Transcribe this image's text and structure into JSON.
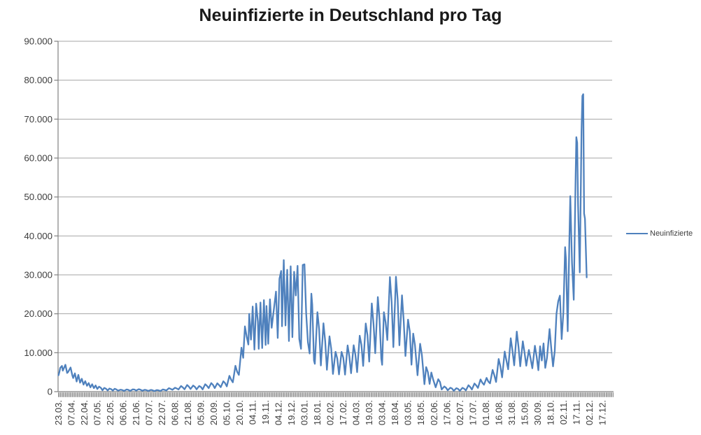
{
  "title": "Neuinfizierte in Deutschland pro Tag",
  "legend": {
    "label": "Neuinfizierte"
  },
  "colors": {
    "series": "#4F81BD",
    "gridline": "#A6A6A6",
    "axis": "#808080",
    "tick_strip": "#8a8a8a",
    "tick_text": "#3d3d3d",
    "title_text": "#191919"
  },
  "chart_data": {
    "type": "line",
    "title": "Neuinfizierte in Deutschland pro Tag",
    "ylabel": "",
    "xlabel": "",
    "ylim": [
      0,
      90000
    ],
    "grid": "horizontal",
    "legend_position": "right",
    "y_ticks": [
      {
        "v": 0,
        "label": "0"
      },
      {
        "v": 10000,
        "label": "10.000"
      },
      {
        "v": 20000,
        "label": "20.000"
      },
      {
        "v": 30000,
        "label": "30.000"
      },
      {
        "v": 40000,
        "label": "40.000"
      },
      {
        "v": 50000,
        "label": "50.000"
      },
      {
        "v": 60000,
        "label": "60.000"
      },
      {
        "v": 70000,
        "label": "70.000"
      },
      {
        "v": 80000,
        "label": "80.000"
      },
      {
        "v": 90000,
        "label": "90.000"
      }
    ],
    "x_tick_labels": [
      "23.03.",
      "07.04.",
      "22.04.",
      "07.05.",
      "22.05.",
      "06.06.",
      "21.06.",
      "07.07.",
      "22.07.",
      "06.08.",
      "21.08.",
      "05.09.",
      "20.09.",
      "05.10.",
      "20.10.",
      "04.11.",
      "19.11.",
      "04.12.",
      "19.12.",
      "03.01.",
      "18.01.",
      "02.02.",
      "17.02.",
      "04.03.",
      "19.03.",
      "03.04.",
      "18.04.",
      "03.05.",
      "18.05.",
      "02.06.",
      "17.06.",
      "02.07.",
      "17.07.",
      "01.08.",
      "16.08.",
      "31.08.",
      "15.09.",
      "30.09.",
      "18.10.",
      "02.11.",
      "17.11.",
      "02.12.",
      "17.12."
    ],
    "x_ticks_every": 15,
    "x_categories_total": 642,
    "series": [
      {
        "name": "Neuinfizierte",
        "points": [
          [
            0,
            4200
          ],
          [
            1,
            5000
          ],
          [
            2,
            6100
          ],
          [
            4,
            6600
          ],
          [
            5,
            5400
          ],
          [
            8,
            6900
          ],
          [
            10,
            4800
          ],
          [
            11,
            5000
          ],
          [
            14,
            6200
          ],
          [
            16,
            4200
          ],
          [
            17,
            3500
          ],
          [
            19,
            4700
          ],
          [
            21,
            2600
          ],
          [
            23,
            4300
          ],
          [
            25,
            2300
          ],
          [
            27,
            3300
          ],
          [
            29,
            1800
          ],
          [
            31,
            2700
          ],
          [
            33,
            1500
          ],
          [
            35,
            2200
          ],
          [
            37,
            1100
          ],
          [
            39,
            1900
          ],
          [
            41,
            900
          ],
          [
            43,
            1600
          ],
          [
            45,
            680
          ],
          [
            47,
            1280
          ],
          [
            49,
            1000
          ],
          [
            51,
            350
          ],
          [
            53,
            950
          ],
          [
            55,
            750
          ],
          [
            57,
            300
          ],
          [
            59,
            800
          ],
          [
            61,
            640
          ],
          [
            63,
            270
          ],
          [
            65,
            740
          ],
          [
            67,
            580
          ],
          [
            69,
            250
          ],
          [
            72,
            500
          ],
          [
            74,
            400
          ],
          [
            76,
            200
          ],
          [
            79,
            560
          ],
          [
            81,
            450
          ],
          [
            83,
            180
          ],
          [
            86,
            580
          ],
          [
            88,
            540
          ],
          [
            90,
            280
          ],
          [
            93,
            630
          ],
          [
            95,
            500
          ],
          [
            97,
            240
          ],
          [
            100,
            470
          ],
          [
            102,
            380
          ],
          [
            104,
            190
          ],
          [
            107,
            440
          ],
          [
            109,
            350
          ],
          [
            111,
            150
          ],
          [
            114,
            410
          ],
          [
            116,
            330
          ],
          [
            118,
            160
          ],
          [
            121,
            570
          ],
          [
            123,
            450
          ],
          [
            125,
            310
          ],
          [
            128,
            900
          ],
          [
            130,
            700
          ],
          [
            132,
            480
          ],
          [
            135,
            1000
          ],
          [
            137,
            820
          ],
          [
            139,
            560
          ],
          [
            142,
            1450
          ],
          [
            144,
            1100
          ],
          [
            146,
            600
          ],
          [
            149,
            1700
          ],
          [
            151,
            1300
          ],
          [
            153,
            680
          ],
          [
            156,
            1570
          ],
          [
            158,
            1250
          ],
          [
            160,
            590
          ],
          [
            163,
            1450
          ],
          [
            165,
            1200
          ],
          [
            167,
            580
          ],
          [
            170,
            1900
          ],
          [
            172,
            1500
          ],
          [
            174,
            900
          ],
          [
            177,
            2200
          ],
          [
            179,
            1750
          ],
          [
            181,
            910
          ],
          [
            184,
            2140
          ],
          [
            186,
            1700
          ],
          [
            188,
            1150
          ],
          [
            191,
            2670
          ],
          [
            193,
            2200
          ],
          [
            195,
            1350
          ],
          [
            198,
            4060
          ],
          [
            200,
            3100
          ],
          [
            202,
            2400
          ],
          [
            205,
            6640
          ],
          [
            207,
            5100
          ],
          [
            209,
            4300
          ],
          [
            212,
            11290
          ],
          [
            214,
            8690
          ],
          [
            216,
            16770
          ],
          [
            218,
            14200
          ],
          [
            220,
            12100
          ],
          [
            221,
            19990
          ],
          [
            223,
            13360
          ],
          [
            225,
            21870
          ],
          [
            227,
            10800
          ],
          [
            229,
            22600
          ],
          [
            231,
            18000
          ],
          [
            232,
            11000
          ],
          [
            234,
            22900
          ],
          [
            236,
            11200
          ],
          [
            238,
            23500
          ],
          [
            240,
            12000
          ],
          [
            241,
            22000
          ],
          [
            243,
            12300
          ],
          [
            245,
            23700
          ],
          [
            247,
            16400
          ],
          [
            250,
            22000
          ],
          [
            252,
            25700
          ],
          [
            254,
            13800
          ],
          [
            256,
            29000
          ],
          [
            258,
            31000
          ],
          [
            259,
            16800
          ],
          [
            261,
            33800
          ],
          [
            263,
            17000
          ],
          [
            265,
            31300
          ],
          [
            267,
            13000
          ],
          [
            269,
            32200
          ],
          [
            271,
            14000
          ],
          [
            273,
            30800
          ],
          [
            275,
            24700
          ],
          [
            277,
            32300
          ],
          [
            279,
            13500
          ],
          [
            281,
            11000
          ],
          [
            283,
            32550
          ],
          [
            285,
            32700
          ],
          [
            287,
            20000
          ],
          [
            289,
            12700
          ],
          [
            291,
            9800
          ],
          [
            293,
            25160
          ],
          [
            294,
            22370
          ],
          [
            296,
            8000
          ],
          [
            297,
            7140
          ],
          [
            300,
            20400
          ],
          [
            302,
            16000
          ],
          [
            304,
            6730
          ],
          [
            307,
            17550
          ],
          [
            309,
            13000
          ],
          [
            311,
            5610
          ],
          [
            314,
            14210
          ],
          [
            316,
            11000
          ],
          [
            318,
            4540
          ],
          [
            321,
            10240
          ],
          [
            323,
            8500
          ],
          [
            325,
            4430
          ],
          [
            328,
            10210
          ],
          [
            330,
            8700
          ],
          [
            332,
            4370
          ],
          [
            335,
            11870
          ],
          [
            337,
            9000
          ],
          [
            339,
            4730
          ],
          [
            342,
            11910
          ],
          [
            344,
            9500
          ],
          [
            346,
            5010
          ],
          [
            349,
            14360
          ],
          [
            351,
            12000
          ],
          [
            353,
            6600
          ],
          [
            356,
            17500
          ],
          [
            358,
            14500
          ],
          [
            360,
            7710
          ],
          [
            363,
            22660
          ],
          [
            365,
            17500
          ],
          [
            367,
            9870
          ],
          [
            370,
            24300
          ],
          [
            372,
            18500
          ],
          [
            374,
            8500
          ],
          [
            375,
            6890
          ],
          [
            377,
            20410
          ],
          [
            379,
            17800
          ],
          [
            381,
            13250
          ],
          [
            384,
            29430
          ],
          [
            386,
            23000
          ],
          [
            388,
            11440
          ],
          [
            391,
            29520
          ],
          [
            393,
            23600
          ],
          [
            395,
            11910
          ],
          [
            398,
            24740
          ],
          [
            400,
            18100
          ],
          [
            402,
            9160
          ],
          [
            405,
            18490
          ],
          [
            407,
            15500
          ],
          [
            409,
            6920
          ],
          [
            411,
            14910
          ],
          [
            413,
            12000
          ],
          [
            416,
            4210
          ],
          [
            419,
            12300
          ],
          [
            421,
            9500
          ],
          [
            424,
            1910
          ],
          [
            426,
            6310
          ],
          [
            428,
            5000
          ],
          [
            430,
            1980
          ],
          [
            432,
            4920
          ],
          [
            434,
            3200
          ],
          [
            437,
            1120
          ],
          [
            440,
            3190
          ],
          [
            442,
            2500
          ],
          [
            444,
            550
          ],
          [
            447,
            1330
          ],
          [
            449,
            1000
          ],
          [
            451,
            350
          ],
          [
            454,
            1010
          ],
          [
            456,
            800
          ],
          [
            458,
            220
          ],
          [
            461,
            890
          ],
          [
            463,
            700
          ],
          [
            465,
            210
          ],
          [
            468,
            970
          ],
          [
            470,
            760
          ],
          [
            472,
            320
          ],
          [
            475,
            1640
          ],
          [
            477,
            1200
          ],
          [
            479,
            550
          ],
          [
            482,
            2090
          ],
          [
            484,
            1600
          ],
          [
            486,
            960
          ],
          [
            489,
            3140
          ],
          [
            491,
            2300
          ],
          [
            493,
            1770
          ],
          [
            496,
            3540
          ],
          [
            498,
            2600
          ],
          [
            500,
            2130
          ],
          [
            503,
            5580
          ],
          [
            505,
            4200
          ],
          [
            507,
            2480
          ],
          [
            510,
            8400
          ],
          [
            512,
            6500
          ],
          [
            514,
            3670
          ],
          [
            517,
            10300
          ],
          [
            519,
            8000
          ],
          [
            521,
            5750
          ],
          [
            524,
            13720
          ],
          [
            526,
            10500
          ],
          [
            528,
            6750
          ],
          [
            531,
            15430
          ],
          [
            533,
            11500
          ],
          [
            535,
            6510
          ],
          [
            538,
            12930
          ],
          [
            540,
            10000
          ],
          [
            542,
            6660
          ],
          [
            545,
            10700
          ],
          [
            547,
            8500
          ],
          [
            549,
            6000
          ],
          [
            552,
            11780
          ],
          [
            554,
            9000
          ],
          [
            556,
            5500
          ],
          [
            558,
            11640
          ],
          [
            560,
            8000
          ],
          [
            562,
            12380
          ],
          [
            564,
            6100
          ],
          [
            566,
            8680
          ],
          [
            569,
            16080
          ],
          [
            571,
            11000
          ],
          [
            573,
            6500
          ],
          [
            575,
            10470
          ],
          [
            577,
            20000
          ],
          [
            579,
            23210
          ],
          [
            581,
            24670
          ],
          [
            583,
            13500
          ],
          [
            585,
            20400
          ],
          [
            587,
            37120
          ],
          [
            588,
            34000
          ],
          [
            590,
            15510
          ],
          [
            592,
            39680
          ],
          [
            593,
            50200
          ],
          [
            595,
            33000
          ],
          [
            597,
            23610
          ],
          [
            599,
            52830
          ],
          [
            600,
            65370
          ],
          [
            601,
            63920
          ],
          [
            602,
            48000
          ],
          [
            604,
            30640
          ],
          [
            606,
            66880
          ],
          [
            607,
            75960
          ],
          [
            608,
            76410
          ],
          [
            609,
            45750
          ],
          [
            610,
            44400
          ],
          [
            612,
            29360
          ]
        ]
      }
    ]
  }
}
